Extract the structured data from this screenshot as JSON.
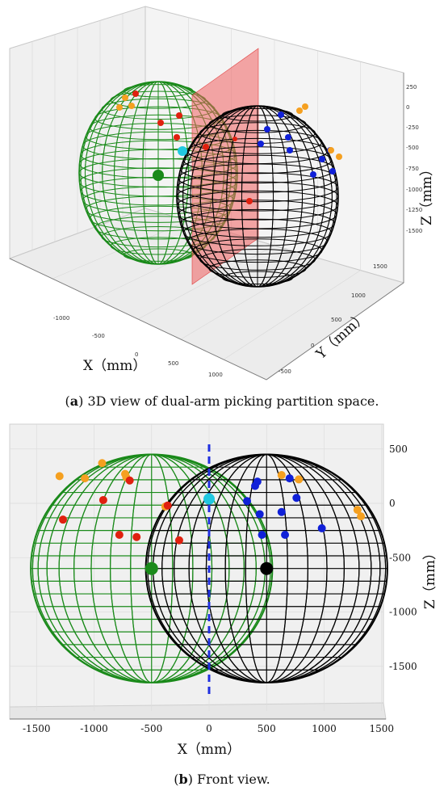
{
  "figure": {
    "panel_a": {
      "label": "a",
      "caption": "3D view of dual-arm picking partition space.",
      "x_axis_label": "X（mm）",
      "y_axis_label": "Y（mm）",
      "z_axis_label": "Z（mm）",
      "x_ticks": [
        "-1000",
        "-500",
        "0",
        "500",
        "1000"
      ],
      "y_ticks": [
        "-500",
        "0",
        "500",
        "1000",
        "1500"
      ],
      "z_ticks": [
        "250",
        "0",
        "-250",
        "-500",
        "-750",
        "-1000",
        "-1250",
        "-1500"
      ]
    },
    "panel_b": {
      "label": "b",
      "caption": "Front view.",
      "x_axis_label": "X（mm）",
      "z_axis_label": "Z（mm）",
      "x_ticks": [
        "-1500",
        "-1000",
        "-500",
        "0",
        "500",
        "1000",
        "1500"
      ],
      "z_ticks": [
        "500",
        "0",
        "-500",
        "-1000",
        "-1500"
      ]
    }
  },
  "colors": {
    "left_sphere": "#1a8a1a",
    "right_sphere": "#000000",
    "partition_plane": "#f06060",
    "partition_line": "#1f2fe0",
    "targets_red": "#e0200f",
    "targets_orange": "#f5a020",
    "targets_blue": "#1020d8",
    "targets_cyan": "#20c8e0"
  },
  "chart_data": [
    {
      "type": "scatter",
      "view": "3d",
      "xlim": [
        -1500,
        1500
      ],
      "ylim": [
        -600,
        1700
      ],
      "zlim": [
        -1700,
        300
      ],
      "spheres": [
        {
          "name": "",
          "center": [
            -500,
            500,
            -600
          ],
          "radius": 1050,
          "color": "green"
        },
        {
          "name": "",
          "center": [
            500,
            500,
            -600
          ],
          "radius": 1050,
          "color": "black"
        }
      ],
      "partition_plane_x": 0
    },
    {
      "type": "scatter",
      "view": "front",
      "xlim": [
        -1700,
        1700
      ],
      "zlim": [
        -1850,
        550
      ],
      "spheres": [
        {
          "center": [
            -500,
            -600
          ],
          "radius": 1050,
          "color": "green"
        },
        {
          "center": [
            500,
            -600
          ],
          "radius": 1050,
          "color": "black"
        }
      ],
      "partition_line_x": 0,
      "series": [
        {
          "color": "orange",
          "points": [
            [
              -1300,
              250
            ],
            [
              -1080,
              230
            ],
            [
              -930,
              370
            ],
            [
              -730,
              270
            ],
            [
              -720,
              240
            ],
            [
              -380,
              -30
            ],
            [
              630,
              260
            ],
            [
              780,
              220
            ],
            [
              1290,
              -60
            ],
            [
              1320,
              -120
            ]
          ]
        },
        {
          "color": "red",
          "points": [
            [
              -1270,
              -150
            ],
            [
              -920,
              30
            ],
            [
              -780,
              -290
            ],
            [
              -690,
              210
            ],
            [
              -630,
              -310
            ],
            [
              -360,
              -20
            ],
            [
              -260,
              -340
            ]
          ]
        },
        {
          "color": "blue",
          "points": [
            [
              330,
              20
            ],
            [
              400,
              160
            ],
            [
              420,
              200
            ],
            [
              440,
              -100
            ],
            [
              460,
              -290
            ],
            [
              630,
              -80
            ],
            [
              660,
              -290
            ],
            [
              700,
              230
            ],
            [
              760,
              50
            ],
            [
              980,
              -230
            ]
          ]
        },
        {
          "color": "cyan",
          "points": [
            [
              0,
              40
            ]
          ]
        },
        {
          "color": "green",
          "points": [
            [
              -500,
              -600
            ]
          ]
        },
        {
          "color": "black",
          "points": [
            [
              500,
              -600
            ]
          ]
        }
      ]
    }
  ]
}
